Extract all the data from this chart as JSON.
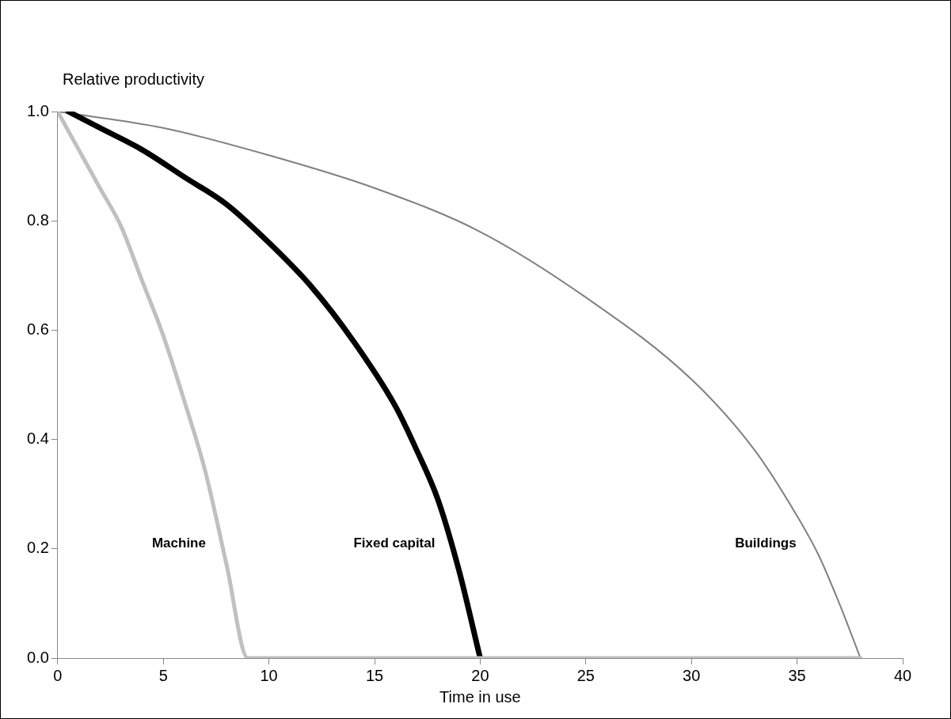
{
  "chart_data": {
    "type": "line",
    "xlabel": "Time in use",
    "ylabel": "Relative productivity",
    "xlim": [
      0,
      40
    ],
    "xticks": [
      0,
      5,
      10,
      15,
      20,
      25,
      30,
      35,
      40
    ],
    "ylim": [
      0,
      1
    ],
    "yticks": [
      {
        "value": 0,
        "label": "0.0"
      },
      {
        "value": 0.2,
        "label": "0.2"
      },
      {
        "value": 0.4,
        "label": "0.4"
      },
      {
        "value": 0.6,
        "label": "0.6"
      },
      {
        "value": 0.8,
        "label": "0.8"
      },
      {
        "value": 1,
        "label": "1.0"
      }
    ],
    "grid": false,
    "legend": false,
    "marker": "none",
    "series": [
      {
        "name": "Machine",
        "color": "#c0c0c0",
        "x": [
          0,
          1,
          2,
          3,
          4,
          5,
          6,
          7,
          8,
          9,
          38
        ],
        "values": [
          1,
          0.93,
          0.86,
          0.79,
          0.69,
          0.59,
          0.47,
          0.34,
          0.17,
          0,
          0
        ]
      },
      {
        "name": "Fixed capital",
        "color": "#000000",
        "x": [
          0.5,
          2,
          4,
          6,
          8,
          10,
          12,
          14,
          16,
          17,
          18,
          19,
          20
        ],
        "values": [
          1,
          0.97,
          0.93,
          0.88,
          0.83,
          0.76,
          0.68,
          0.58,
          0.46,
          0.38,
          0.29,
          0.16,
          0
        ]
      },
      {
        "name": "Buildings",
        "color": "#808080",
        "x": [
          0,
          5,
          10,
          15,
          20,
          25,
          30,
          33,
          35,
          36,
          37,
          38
        ],
        "values": [
          1,
          0.97,
          0.92,
          0.86,
          0.78,
          0.66,
          0.51,
          0.38,
          0.26,
          0.19,
          0.1,
          0
        ]
      }
    ]
  }
}
